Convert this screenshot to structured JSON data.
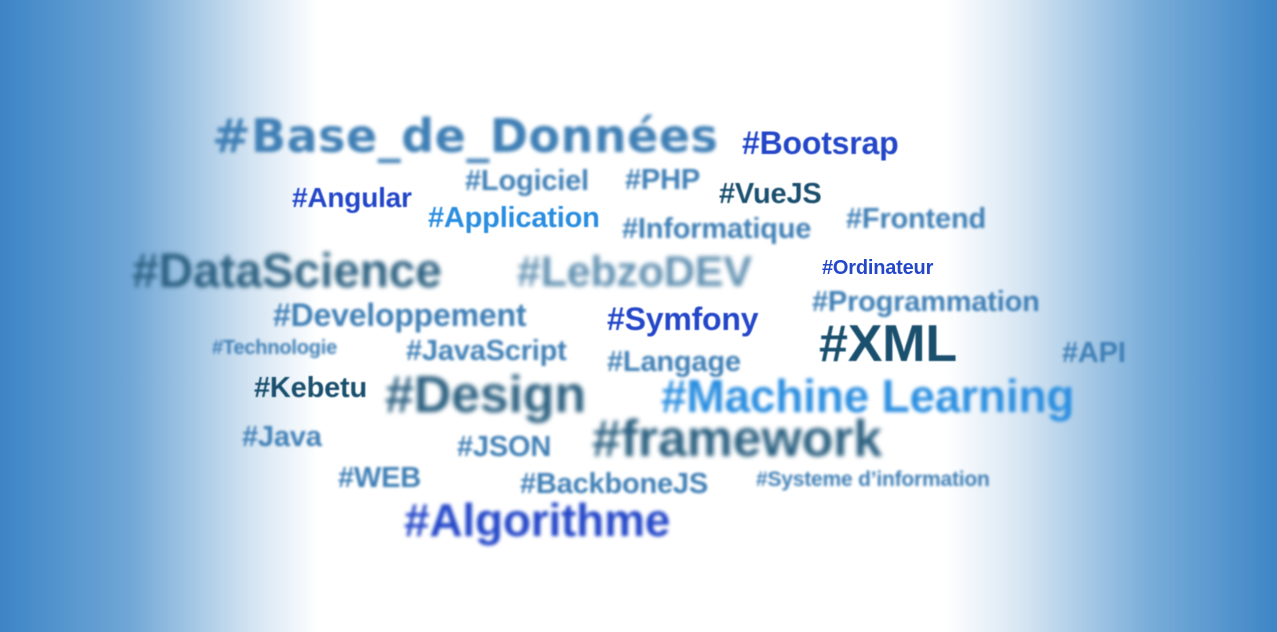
{
  "tags": {
    "base_de_donnees": "#Base_de_Données",
    "bootsrap": "#Bootsrap",
    "angular": "#Angular",
    "logiciel": "#Logiciel",
    "php": "#PHP",
    "vuejs": "#VueJS",
    "application": "#Application",
    "informatique": "#Informatique",
    "frontend": "#Frontend",
    "datascience": "#DataScience",
    "lebzodev": "#LebzoDEV",
    "ordinateur": "#Ordinateur",
    "developpement": "#Developpement",
    "symfony": "#Symfony",
    "programmation": "#Programmation",
    "technologie": "#Technologie",
    "javascript": "#JavaScript",
    "langage": "#Langage",
    "xml": "#XML",
    "api": "#API",
    "kebetu": "#Kebetu",
    "design": "#Design",
    "machine_learning": "#Machine Learning",
    "java": "#Java",
    "json": "#JSON",
    "framework": "#framework",
    "web": "#WEB",
    "backbonejs": "#BackboneJS",
    "systeme_information": "#Systeme d’information",
    "algorithme": "#Algorithme"
  }
}
